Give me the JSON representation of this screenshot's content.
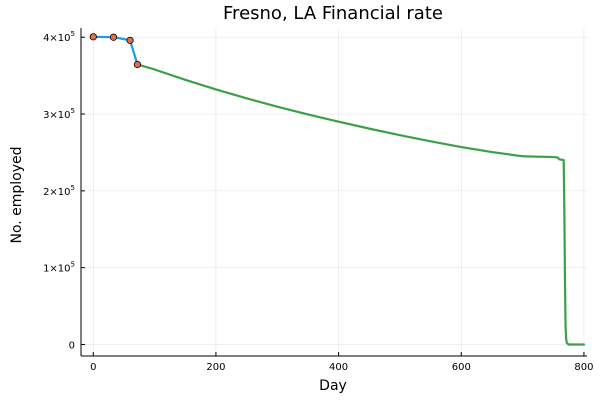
{
  "chart_data": {
    "type": "line",
    "title": "Fresno, LA Financial rate",
    "xlabel": "Day",
    "ylabel": "No. employed",
    "xlim": [
      -20,
      805
    ],
    "ylim": [
      -15000,
      412000
    ],
    "x_ticks": [
      0,
      200,
      400,
      600,
      800
    ],
    "y_ticks": [
      {
        "value": 0,
        "label": "0"
      },
      {
        "value": 100000,
        "label": "1×10",
        "exp": "5"
      },
      {
        "value": 200000,
        "label": "2×10",
        "exp": "5"
      },
      {
        "value": 300000,
        "label": "3×10",
        "exp": "5"
      },
      {
        "value": 400000,
        "label": "4×10",
        "exp": "5"
      }
    ],
    "grid": true,
    "legend": "none",
    "series": [
      {
        "style": "line",
        "color": "#189ce8",
        "x": [
          0,
          33,
          60,
          72
        ],
        "y": [
          400500,
          400000,
          396000,
          364500
        ]
      },
      {
        "style": "line",
        "color": "#3ba048",
        "x": [
          72,
          100,
          150,
          200,
          250,
          300,
          350,
          400,
          450,
          500,
          550,
          600,
          650,
          700,
          750,
          757,
          760,
          767,
          768,
          769,
          770,
          771,
          772,
          775,
          780,
          800
        ],
        "y": [
          364500,
          358000,
          344500,
          332000,
          320500,
          309500,
          299500,
          290000,
          281000,
          272500,
          264500,
          257000,
          250500,
          245000,
          244000,
          243500,
          241000,
          240000,
          180000,
          90000,
          25000,
          8000,
          2000,
          0,
          0,
          0
        ]
      },
      {
        "style": "points",
        "color": "#e26f46",
        "x": [
          0,
          33,
          60,
          72
        ],
        "y": [
          400500,
          400000,
          396000,
          364500
        ]
      }
    ]
  }
}
